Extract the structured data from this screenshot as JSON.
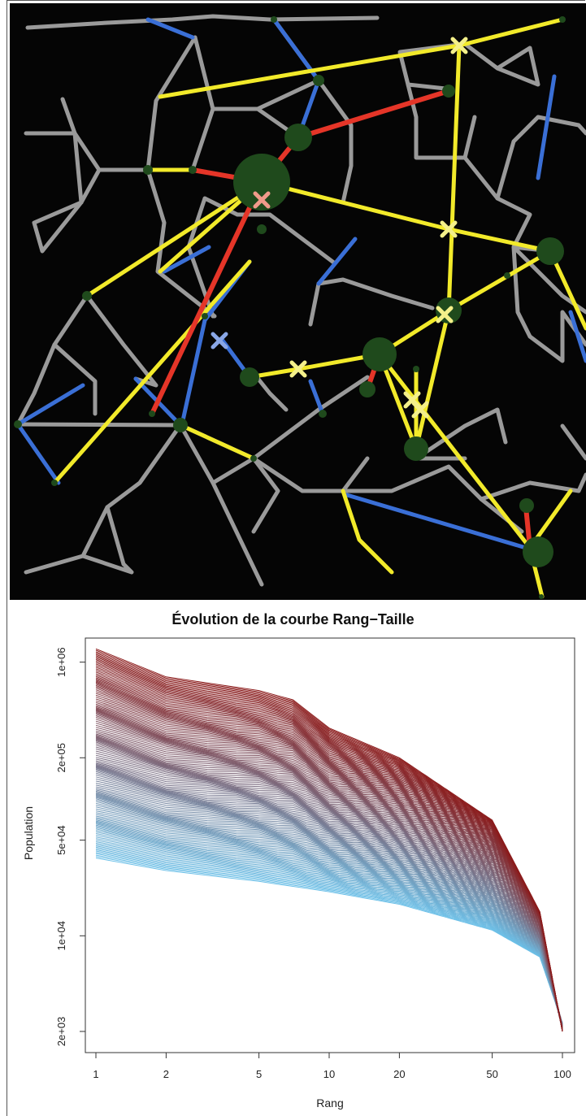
{
  "network": {
    "colors": {
      "background": "#050505",
      "road": "#9a9a9a",
      "blue": "#3a6fd6",
      "yellow": "#f2ea2a",
      "red": "#e53528",
      "node": "#1f4a1c",
      "cross": "#f4f08a",
      "cross_pink": "#f09a8a",
      "cross_blue": "#8aa7e6"
    }
  },
  "chart_data": {
    "type": "line",
    "title": "Évolution de la courbe Rang−Taille",
    "xlabel": "Rang",
    "ylabel": "Population",
    "x_scale": "log",
    "y_scale": "log",
    "xlim": [
      1,
      100
    ],
    "ylim": [
      1500,
      1400000
    ],
    "x_ticks": [
      1,
      2,
      5,
      10,
      20,
      50,
      100
    ],
    "x_tick_labels": [
      "1",
      "2",
      "5",
      "10",
      "20",
      "50",
      "100"
    ],
    "y_ticks": [
      2000,
      10000,
      50000,
      200000,
      1000000
    ],
    "y_tick_labels": [
      "2e+03",
      "1e+04",
      "5e+04",
      "2e+05",
      "1e+06"
    ],
    "grid": false,
    "series_count": 150,
    "color_start": "#6cc0e8",
    "color_end": "#8b1a1a",
    "initial_curve": [
      [
        1,
        37000
      ],
      [
        2,
        30000
      ],
      [
        5,
        25000
      ],
      [
        10,
        21000
      ],
      [
        20,
        17000
      ],
      [
        50,
        11000
      ],
      [
        80,
        7000
      ],
      [
        100,
        2300
      ]
    ],
    "final_curve": [
      [
        1,
        1250000
      ],
      [
        2,
        780000
      ],
      [
        5,
        620000
      ],
      [
        7,
        530000
      ],
      [
        10,
        330000
      ],
      [
        20,
        200000
      ],
      [
        50,
        70000
      ],
      [
        80,
        15000
      ],
      [
        100,
        2000
      ]
    ]
  }
}
